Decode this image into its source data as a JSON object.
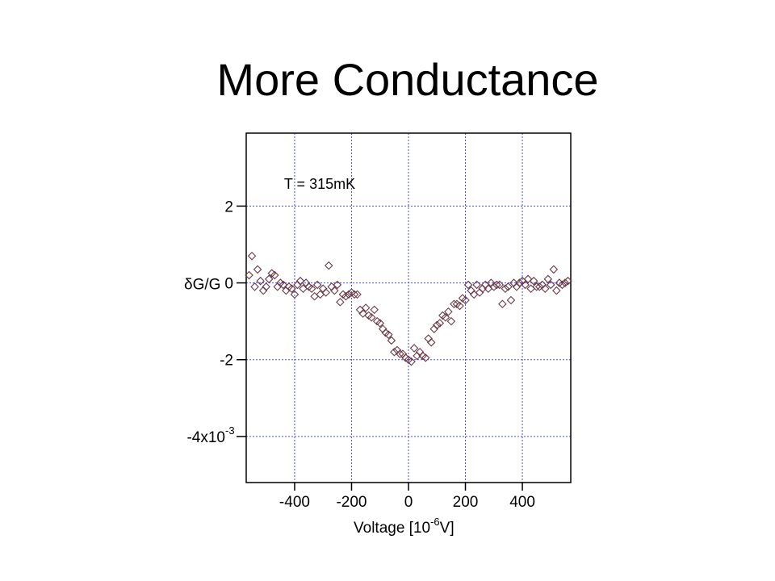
{
  "slide": {
    "title": "More Conductance"
  },
  "chart_data": {
    "type": "scatter",
    "title": "",
    "xlabel": "Voltage [10^-6 V]",
    "xlabel_parts": {
      "main": "Voltage [10",
      "exp": "-6",
      "unit": "V]"
    },
    "ylabel": "δG/G",
    "xlim": [
      -570,
      570
    ],
    "ylim": [
      -5.2,
      3.9
    ],
    "x_ticks": [
      -400,
      -200,
      0,
      200,
      400
    ],
    "x_tick_labels": [
      "-400",
      "-200",
      "0",
      "200",
      "400"
    ],
    "y_ticks": [
      2,
      0,
      -2,
      -4
    ],
    "y_tick_labels": [
      "2",
      "0",
      "-2",
      "-4x10"
    ],
    "y_tick_exp": {
      "value": -4,
      "exp": "-3"
    },
    "y_scale_factor": "x10^-3",
    "grid": true,
    "marker": "diamond-open",
    "marker_color": "#6b3a46",
    "grid_color": "#4a4aff",
    "annotations": [
      {
        "text": "T = 315mK",
        "x": -420,
        "y": 2.6
      }
    ],
    "series": [
      {
        "name": "",
        "points": [
          [
            -560,
            0.2
          ],
          [
            -550,
            0.7
          ],
          [
            -540,
            -0.1
          ],
          [
            -530,
            0.35
          ],
          [
            -520,
            0.05
          ],
          [
            -510,
            -0.2
          ],
          [
            -500,
            -0.1
          ],
          [
            -490,
            0.1
          ],
          [
            -480,
            0.25
          ],
          [
            -470,
            0.2
          ],
          [
            -460,
            -0.1
          ],
          [
            -450,
            0.0
          ],
          [
            -440,
            -0.05
          ],
          [
            -430,
            -0.2
          ],
          [
            -420,
            -0.1
          ],
          [
            -410,
            -0.15
          ],
          [
            -400,
            -0.3
          ],
          [
            -390,
            -0.05
          ],
          [
            -380,
            0.05
          ],
          [
            -370,
            -0.15
          ],
          [
            -360,
            0.0
          ],
          [
            -350,
            -0.1
          ],
          [
            -340,
            -0.15
          ],
          [
            -330,
            -0.35
          ],
          [
            -320,
            -0.05
          ],
          [
            -310,
            -0.3
          ],
          [
            -300,
            -0.15
          ],
          [
            -290,
            -0.25
          ],
          [
            -280,
            0.45
          ],
          [
            -270,
            -0.1
          ],
          [
            -260,
            -0.2
          ],
          [
            -250,
            -0.05
          ],
          [
            -240,
            -0.5
          ],
          [
            -230,
            -0.3
          ],
          [
            -220,
            -0.35
          ],
          [
            -210,
            -0.3
          ],
          [
            -200,
            -0.25
          ],
          [
            -190,
            -0.3
          ],
          [
            -180,
            -0.3
          ],
          [
            -170,
            -0.7
          ],
          [
            -160,
            -0.8
          ],
          [
            -150,
            -0.65
          ],
          [
            -140,
            -0.85
          ],
          [
            -130,
            -0.9
          ],
          [
            -120,
            -0.7
          ],
          [
            -110,
            -1.0
          ],
          [
            -100,
            -1.05
          ],
          [
            -90,
            -1.2
          ],
          [
            -80,
            -1.3
          ],
          [
            -70,
            -1.35
          ],
          [
            -60,
            -1.5
          ],
          [
            -50,
            -1.8
          ],
          [
            -40,
            -1.75
          ],
          [
            -30,
            -1.85
          ],
          [
            -20,
            -1.85
          ],
          [
            -10,
            -1.95
          ],
          [
            0,
            -2.0
          ],
          [
            10,
            -2.05
          ],
          [
            20,
            -1.7
          ],
          [
            30,
            -1.9
          ],
          [
            40,
            -1.8
          ],
          [
            50,
            -1.9
          ],
          [
            60,
            -1.95
          ],
          [
            70,
            -1.45
          ],
          [
            80,
            -1.55
          ],
          [
            90,
            -1.2
          ],
          [
            100,
            -1.1
          ],
          [
            110,
            -1.05
          ],
          [
            120,
            -0.85
          ],
          [
            130,
            -0.9
          ],
          [
            140,
            -0.75
          ],
          [
            150,
            -1.0
          ],
          [
            160,
            -0.55
          ],
          [
            170,
            -0.55
          ],
          [
            180,
            -0.6
          ],
          [
            190,
            -0.4
          ],
          [
            200,
            -0.45
          ],
          [
            210,
            -0.05
          ],
          [
            220,
            -0.2
          ],
          [
            230,
            -0.3
          ],
          [
            240,
            -0.05
          ],
          [
            250,
            -0.25
          ],
          [
            260,
            -0.15
          ],
          [
            270,
            -0.05
          ],
          [
            280,
            -0.15
          ],
          [
            290,
            0.0
          ],
          [
            300,
            -0.1
          ],
          [
            310,
            -0.05
          ],
          [
            320,
            -0.05
          ],
          [
            330,
            -0.55
          ],
          [
            340,
            -0.15
          ],
          [
            350,
            -0.1
          ],
          [
            360,
            -0.45
          ],
          [
            370,
            0.0
          ],
          [
            380,
            -0.1
          ],
          [
            390,
            0.0
          ],
          [
            400,
            0.05
          ],
          [
            410,
            -0.05
          ],
          [
            420,
            0.1
          ],
          [
            430,
            -0.15
          ],
          [
            440,
            0.05
          ],
          [
            450,
            -0.1
          ],
          [
            460,
            -0.1
          ],
          [
            470,
            -0.05
          ],
          [
            480,
            -0.15
          ],
          [
            490,
            0.1
          ],
          [
            500,
            -0.05
          ],
          [
            510,
            0.35
          ],
          [
            520,
            -0.2
          ],
          [
            530,
            0.0
          ],
          [
            540,
            -0.05
          ],
          [
            550,
            0.0
          ],
          [
            560,
            0.05
          ]
        ]
      }
    ]
  }
}
